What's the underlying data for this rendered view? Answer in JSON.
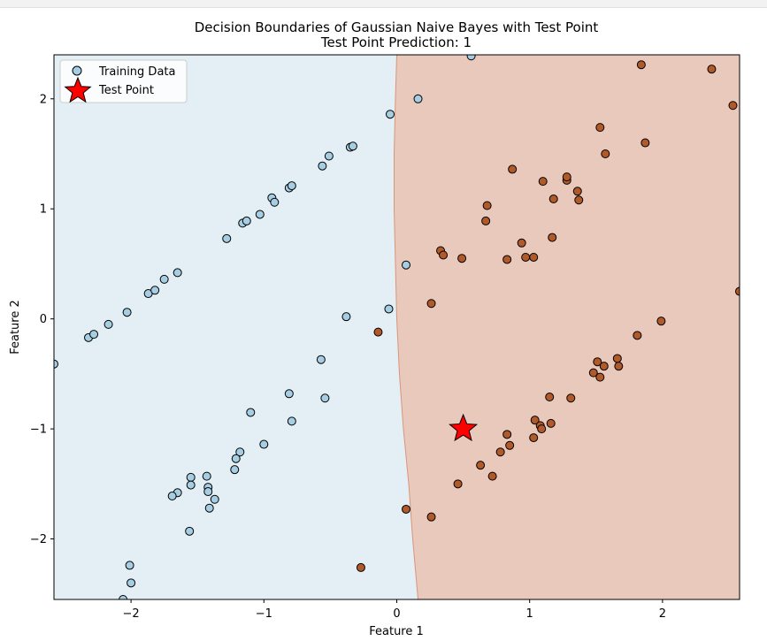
{
  "chart_data": {
    "type": "scatter",
    "title": "Decision Boundaries of Gaussian Naive Bayes with Test Point",
    "subtitle": "Test Point Prediction: 1",
    "xlabel": "Feature 1",
    "ylabel": "Feature 2",
    "xlim": [
      -2.58,
      2.58
    ],
    "ylim": [
      -2.55,
      2.4
    ],
    "xticks": [
      -2,
      -1,
      0,
      1,
      2
    ],
    "yticks": [
      -2,
      -1,
      0,
      1,
      2
    ],
    "grid": false,
    "legend_position": "top-left",
    "legend": [
      "Training Data",
      "Test Point"
    ],
    "regions": {
      "class0_color": "#e3eef5",
      "class1_color": "#e8c9bb",
      "boundary_color": "#d9957a",
      "boundary": [
        {
          "x": 0.0,
          "y": 2.4
        },
        {
          "x": -0.01,
          "y": 2.0
        },
        {
          "x": -0.02,
          "y": 1.5
        },
        {
          "x": -0.02,
          "y": 1.0
        },
        {
          "x": -0.01,
          "y": 0.5
        },
        {
          "x": 0.0,
          "y": 0.0
        },
        {
          "x": 0.02,
          "y": -0.5
        },
        {
          "x": 0.05,
          "y": -1.0
        },
        {
          "x": 0.09,
          "y": -1.5
        },
        {
          "x": 0.12,
          "y": -2.0
        },
        {
          "x": 0.16,
          "y": -2.55
        }
      ]
    },
    "series": [
      {
        "name": "Training Data",
        "class": 0,
        "color": "#a6cee3",
        "points": [
          [
            -2.58,
            -0.41
          ],
          [
            -2.32,
            -0.17
          ],
          [
            -2.28,
            -0.14
          ],
          [
            -2.17,
            -0.05
          ],
          [
            -2.03,
            0.06
          ],
          [
            -1.87,
            0.23
          ],
          [
            -1.82,
            0.26
          ],
          [
            -1.75,
            0.36
          ],
          [
            -1.65,
            0.42
          ],
          [
            -1.28,
            0.73
          ],
          [
            -1.16,
            0.87
          ],
          [
            -1.13,
            0.89
          ],
          [
            -1.03,
            0.95
          ],
          [
            -0.94,
            1.1
          ],
          [
            -0.92,
            1.06
          ],
          [
            -0.81,
            1.19
          ],
          [
            -0.79,
            1.21
          ],
          [
            -0.56,
            1.39
          ],
          [
            -0.51,
            1.48
          ],
          [
            -0.35,
            1.56
          ],
          [
            -0.33,
            1.57
          ],
          [
            -0.05,
            1.86
          ],
          [
            0.16,
            2.0
          ],
          [
            0.56,
            2.39
          ],
          [
            0.07,
            0.49
          ],
          [
            -0.06,
            0.09
          ],
          [
            -0.38,
            0.02
          ],
          [
            -0.57,
            -0.37
          ],
          [
            -0.54,
            -0.72
          ],
          [
            -0.81,
            -0.68
          ],
          [
            -0.79,
            -0.93
          ],
          [
            -1.1,
            -0.85
          ],
          [
            -1.0,
            -1.14
          ],
          [
            -1.18,
            -1.21
          ],
          [
            -1.21,
            -1.27
          ],
          [
            -1.22,
            -1.37
          ],
          [
            -1.43,
            -1.43
          ],
          [
            -1.42,
            -1.53
          ],
          [
            -1.42,
            -1.57
          ],
          [
            -1.37,
            -1.64
          ],
          [
            -1.41,
            -1.72
          ],
          [
            -1.55,
            -1.44
          ],
          [
            -1.55,
            -1.51
          ],
          [
            -1.65,
            -1.58
          ],
          [
            -1.69,
            -1.61
          ],
          [
            -1.56,
            -1.93
          ],
          [
            -2.01,
            -2.24
          ],
          [
            -2.0,
            -2.4
          ],
          [
            -2.06,
            -2.55
          ]
        ]
      },
      {
        "name": "Training Data",
        "class": 1,
        "color": "#b15928",
        "points": [
          [
            1.84,
            2.31
          ],
          [
            2.37,
            2.27
          ],
          [
            2.53,
            1.94
          ],
          [
            1.53,
            1.74
          ],
          [
            1.87,
            1.6
          ],
          [
            1.57,
            1.5
          ],
          [
            0.87,
            1.36
          ],
          [
            1.1,
            1.25
          ],
          [
            1.28,
            1.26
          ],
          [
            1.28,
            1.29
          ],
          [
            1.36,
            1.16
          ],
          [
            1.18,
            1.09
          ],
          [
            1.37,
            1.08
          ],
          [
            0.68,
            1.03
          ],
          [
            0.67,
            0.89
          ],
          [
            1.17,
            0.74
          ],
          [
            0.94,
            0.69
          ],
          [
            0.33,
            0.62
          ],
          [
            0.35,
            0.58
          ],
          [
            0.49,
            0.55
          ],
          [
            0.83,
            0.54
          ],
          [
            0.97,
            0.56
          ],
          [
            1.03,
            0.56
          ],
          [
            2.58,
            0.25
          ],
          [
            0.26,
            0.14
          ],
          [
            1.99,
            -0.02
          ],
          [
            -0.14,
            -0.12
          ],
          [
            1.81,
            -0.15
          ],
          [
            1.51,
            -0.39
          ],
          [
            1.66,
            -0.36
          ],
          [
            1.56,
            -0.43
          ],
          [
            1.67,
            -0.43
          ],
          [
            1.48,
            -0.49
          ],
          [
            1.53,
            -0.53
          ],
          [
            1.15,
            -0.71
          ],
          [
            1.31,
            -0.72
          ],
          [
            1.04,
            -0.92
          ],
          [
            1.08,
            -0.97
          ],
          [
            1.09,
            -1.0
          ],
          [
            1.16,
            -0.95
          ],
          [
            0.83,
            -1.05
          ],
          [
            1.03,
            -1.08
          ],
          [
            0.85,
            -1.15
          ],
          [
            0.78,
            -1.21
          ],
          [
            0.63,
            -1.33
          ],
          [
            0.72,
            -1.43
          ],
          [
            0.46,
            -1.5
          ],
          [
            0.07,
            -1.73
          ],
          [
            0.26,
            -1.8
          ],
          [
            -0.27,
            -2.26
          ]
        ]
      }
    ],
    "test_point": {
      "name": "Test Point",
      "x": 0.5,
      "y": -1.0,
      "color": "#ff0000",
      "marker": "star",
      "predicted_class": 1
    }
  }
}
